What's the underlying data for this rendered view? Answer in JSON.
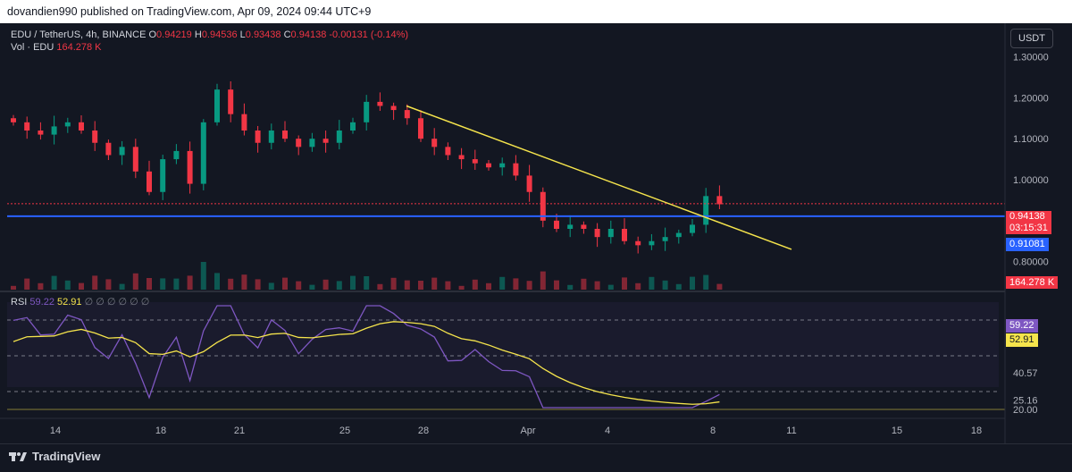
{
  "header": {
    "publisher": "dovandien990 published on TradingView.com, Apr 09, 2024 09:44 UTC+9"
  },
  "legend": {
    "symbol": "EDU / TetherUS, 4h, BINANCE",
    "o_label": "O",
    "o_value": "0.94219",
    "h_label": "H",
    "h_value": "0.94536",
    "l_label": "L",
    "l_value": "0.93438",
    "c_label": "C",
    "c_value": "0.94138",
    "change": "-0.00131 (-0.14%)",
    "vol_label": "Vol · EDU",
    "vol_value": "164.278 K"
  },
  "rsi_legend": {
    "label": "RSI",
    "rsi": "59.22",
    "ma": "52.91",
    "extra": "∅ ∅ ∅ ∅ ∅ ∅"
  },
  "currency_button": "USDT",
  "price_axis": {
    "ticks": [
      "1.30000",
      "1.20000",
      "1.10000",
      "1.00000",
      "0.90000",
      "0.80000"
    ],
    "last_price": "0.94138",
    "countdown": "03:15:31",
    "level_price": "0.91081",
    "volume_tag": "164.278 K"
  },
  "rsi_axis": {
    "ticks": [
      "40.57",
      "25.16",
      "20.00"
    ],
    "rsi_tag": "59.22",
    "ma_tag": "52.91"
  },
  "time_axis": {
    "labels": [
      "14",
      "18",
      "21",
      "25",
      "28",
      "Apr",
      "4",
      "8",
      "11",
      "15",
      "18"
    ]
  },
  "footer": {
    "brand": "TradingView"
  },
  "colors": {
    "up": "#089981",
    "down": "#f23645",
    "trendline": "#f5e44c",
    "support": "#2962ff",
    "rsi": "#7e57c2",
    "rsi_ma": "#f5e44c"
  },
  "chart_data": {
    "type": "candlestick",
    "symbol": "EDU / TetherUS",
    "interval": "4h",
    "exchange": "BINANCE",
    "ohlc_last": {
      "open": 0.94219,
      "high": 0.94536,
      "low": 0.93438,
      "close": 0.94138,
      "change": -0.00131,
      "change_pct": -0.14
    },
    "x_labels": [
      "14",
      "18",
      "21",
      "25",
      "28",
      "Apr",
      "4",
      "8",
      "11",
      "15",
      "18"
    ],
    "ylim": [
      0.76,
      1.36
    ],
    "horizontal_level": 0.91081,
    "trendline": [
      {
        "x": "Mar 27",
        "y": 1.18
      },
      {
        "x": "Apr 11",
        "y": 0.83
      }
    ],
    "close_series": [
      1.14,
      1.12,
      1.11,
      1.13,
      1.14,
      1.12,
      1.09,
      1.06,
      1.08,
      1.02,
      0.97,
      1.05,
      1.07,
      0.99,
      1.14,
      1.22,
      1.16,
      1.12,
      1.09,
      1.12,
      1.1,
      1.08,
      1.1,
      1.09,
      1.12,
      1.14,
      1.19,
      1.18,
      1.17,
      1.15,
      1.1,
      1.08,
      1.06,
      1.05,
      1.04,
      1.03,
      1.04,
      1.01,
      0.97,
      0.9,
      0.88,
      0.89,
      0.88,
      0.86,
      0.88,
      0.85,
      0.84,
      0.85,
      0.86,
      0.87,
      0.89,
      0.96,
      0.94
    ],
    "volume_last": "164.278 K",
    "rsi": {
      "value": 59.22,
      "ma": 52.91,
      "levels": [
        70,
        30
      ],
      "ylim": [
        20,
        80
      ]
    }
  }
}
